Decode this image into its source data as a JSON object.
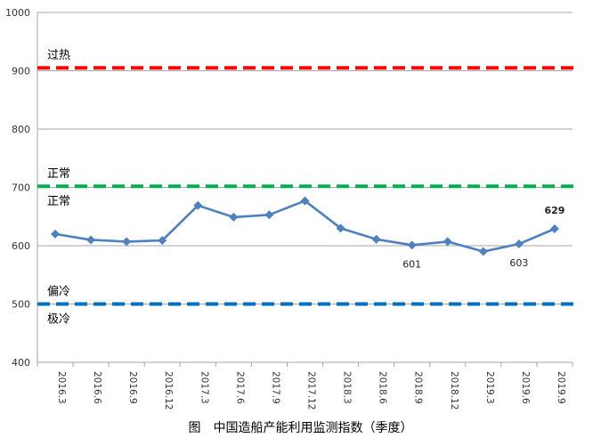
{
  "chart_data": {
    "type": "line",
    "title": "",
    "xlabel": "",
    "ylabel": "",
    "ylim": [
      400,
      1000
    ],
    "yticks": [
      400,
      500,
      600,
      700,
      800,
      900,
      1000
    ],
    "grid": true,
    "categories": [
      "2016.3",
      "2016.6",
      "2016.9",
      "2016.12",
      "2017.3",
      "2017.6",
      "2017.9",
      "2017.12",
      "2018.3",
      "2018.6",
      "2018.9",
      "2018.12",
      "2019.3",
      "2019.6",
      "2019.9"
    ],
    "series": [
      {
        "values": [
          620,
          610,
          607,
          609,
          669,
          649,
          653,
          677,
          630,
          611,
          601,
          607,
          590,
          603,
          629
        ],
        "color": "#4f81bd",
        "marker": "diamond"
      }
    ],
    "data_labels": [
      {
        "index": 10,
        "text": "601",
        "position": "below"
      },
      {
        "index": 13,
        "text": "603",
        "position": "below"
      },
      {
        "index": 14,
        "text": "629",
        "position": "above",
        "bold": true
      }
    ],
    "reference_lines": [
      {
        "value": 905,
        "color": "#ff0000",
        "label_above": "过热"
      },
      {
        "value": 702,
        "color": "#00b050",
        "label_above": "正常",
        "label_below": "正常"
      },
      {
        "value": 500,
        "color": "#0070c0",
        "label_above": "偏冷",
        "label_below": "极冷"
      }
    ]
  },
  "caption": "图　中国造船产能利用监测指数（季度）"
}
